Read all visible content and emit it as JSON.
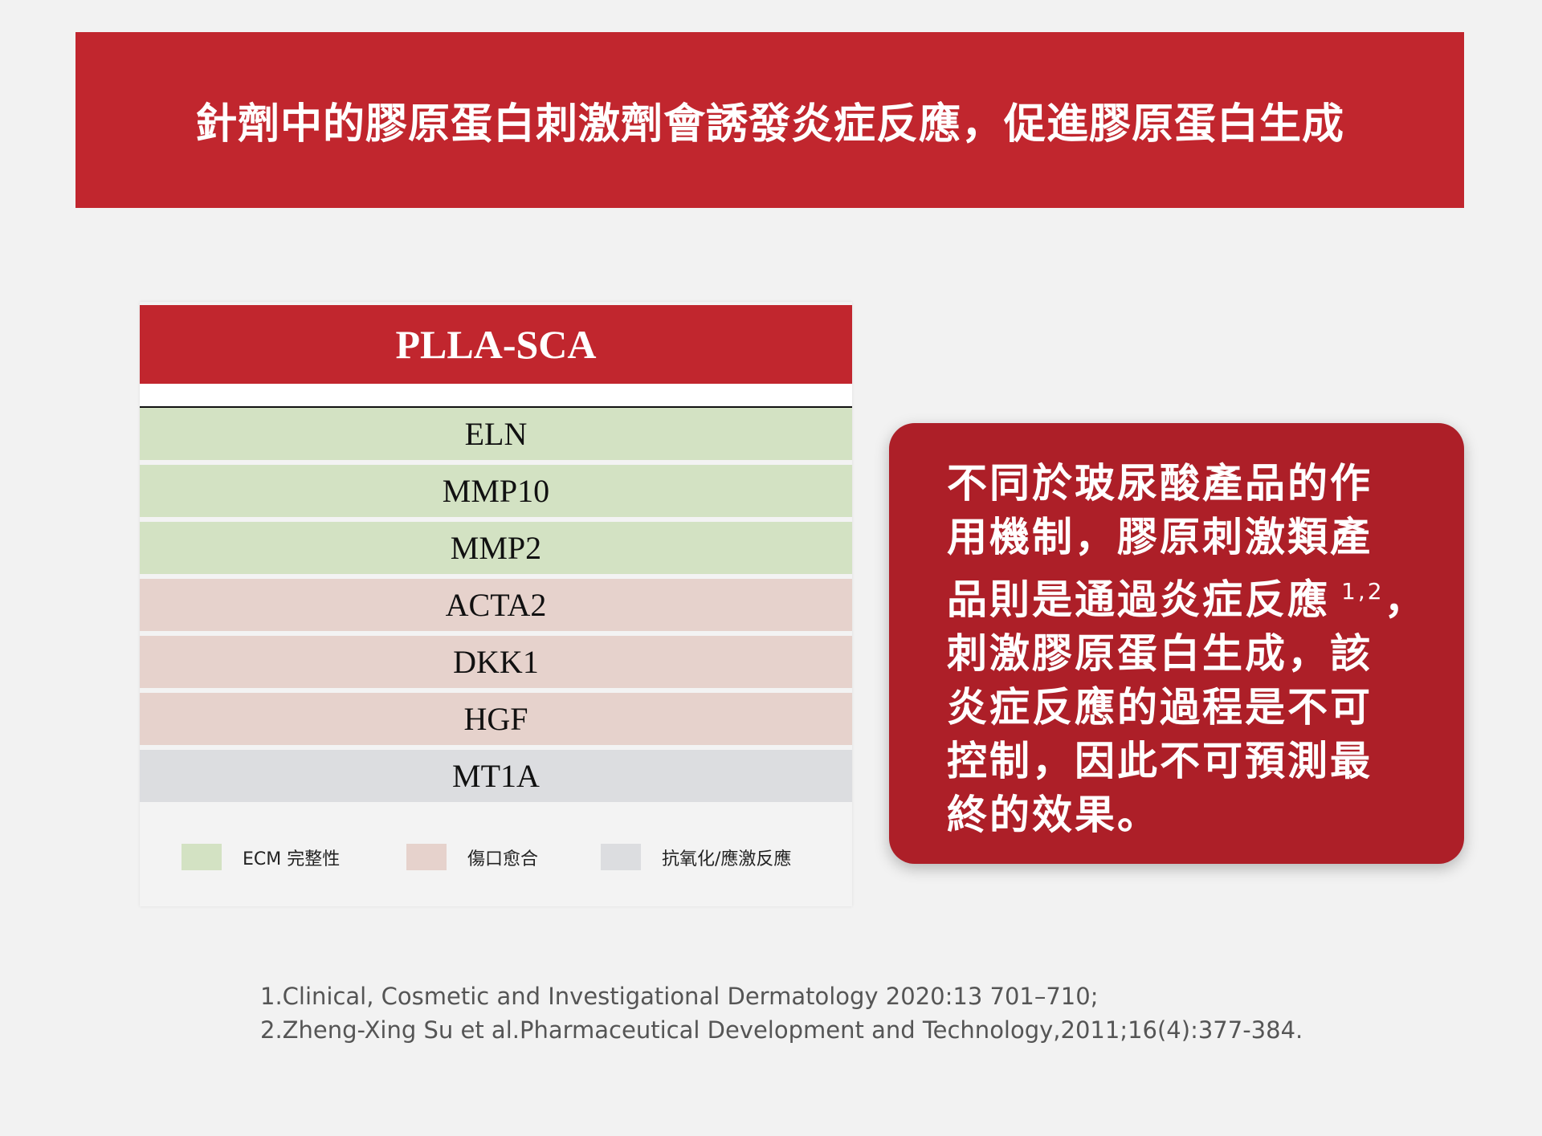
{
  "header": {
    "title": "針劑中的膠原蛋白刺激劑會誘發炎症反應，促進膠原蛋白生成"
  },
  "table": {
    "title": "PLLA-SCA",
    "rows": [
      {
        "label": "ELN",
        "color": "#d3e2c3"
      },
      {
        "label": "MMP10",
        "color": "#d3e2c3"
      },
      {
        "label": "MMP2",
        "color": "#d3e2c3"
      },
      {
        "label": "ACTA2",
        "color": "#e6d2cc"
      },
      {
        "label": "DKK1",
        "color": "#e6d2cc"
      },
      {
        "label": "HGF",
        "color": "#e6d2cc"
      },
      {
        "label": "MT1A",
        "color": "#dcdde0"
      }
    ],
    "legend": [
      {
        "label": "ECM 完整性",
        "color": "#d3e2c3"
      },
      {
        "label": "傷口愈合",
        "color": "#e6d2cc"
      },
      {
        "label": "抗氧化/應激反應",
        "color": "#dcdde0"
      }
    ]
  },
  "callout": {
    "lines": [
      "不同於玻尿酸產品的作",
      "用機制，膠原刺激類產",
      "品則是通過炎症反應",
      "刺激膠原蛋白生成，該",
      "炎症反應的過程是不可",
      "控制，因此不可預測最",
      "終的效果。"
    ],
    "superscript": "1,2",
    "superscript_line": 2,
    "after_superscript": "，"
  },
  "references": [
    "1.Clinical, Cosmetic and Investigational Dermatology 2020:13 701–710;",
    "2.Zheng-Xing Su et al.Pharmaceutical Development and Technology,2011;16(4):377-384."
  ]
}
